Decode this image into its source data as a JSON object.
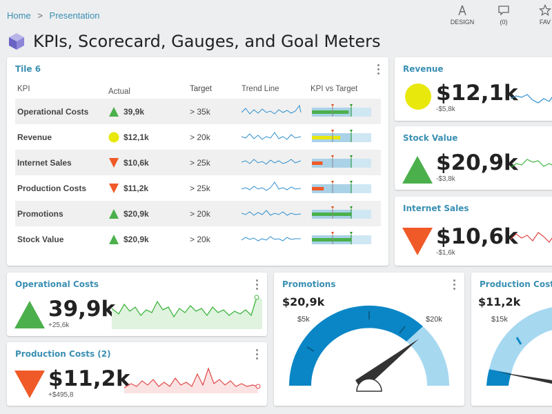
{
  "breadcrumb": {
    "home": "Home",
    "sep": ">",
    "current": "Presentation"
  },
  "toolbar": {
    "design_label": "DESIGN",
    "comments_label": "(0)",
    "fav_label": "FAV"
  },
  "page_title": "KPIs, Scorecard, Gauges, and Goal Meters",
  "tile6": {
    "title": "Tile 6",
    "headers": {
      "kpi": "KPI",
      "actual": "Actual",
      "target": "Target",
      "trend": "Trend Line",
      "vs": "KPI vs Target"
    },
    "rows": [
      {
        "kpi": "Operational Costs",
        "actual": "39,9k",
        "target": "> 35k",
        "status": "up-green"
      },
      {
        "kpi": "Revenue",
        "actual": "$12,1k",
        "target": "> 20k",
        "status": "circle-yellow"
      },
      {
        "kpi": "Internet Sales",
        "actual": "$10,6k",
        "target": "> 25k",
        "status": "down-red"
      },
      {
        "kpi": "Production Costs",
        "actual": "$11,2k",
        "target": "> 25k",
        "status": "down-red"
      },
      {
        "kpi": "Promotions",
        "actual": "$20,9k",
        "target": "> 20k",
        "status": "up-green"
      },
      {
        "kpi": "Stock Value",
        "actual": "$20,9k",
        "target": "> 20k",
        "status": "up-green"
      }
    ]
  },
  "revenue": {
    "title": "Revenue",
    "value": "$12,1k",
    "delta": "-$5,8k"
  },
  "stock_value": {
    "title": "Stock Value",
    "value": "$20,9k",
    "delta": "-$3,8k"
  },
  "internet_sales": {
    "title": "Internet Sales",
    "value": "$10,6k",
    "delta": "-$1,6k"
  },
  "operational_costs": {
    "title": "Operational Costs",
    "value": "39,9k",
    "delta": "+25,6k"
  },
  "production_costs_2": {
    "title": "Production Costs (2)",
    "value": "$11,2k",
    "delta": "+$495,8"
  },
  "promotions_gauge": {
    "title": "Promotions",
    "value": "$20,9k",
    "min_label": "$5k",
    "max_label": "$20k"
  },
  "production_gauge": {
    "title": "Production Costs",
    "value": "$11,2k",
    "min_label": "$15k"
  },
  "colors": {
    "accent": "#3a8fb2",
    "green": "#4bb04b",
    "red": "#f05a28",
    "yellow": "#e8e80c",
    "gauge_dark": "#0a86c6",
    "gauge_light": "#a6d8f0"
  }
}
